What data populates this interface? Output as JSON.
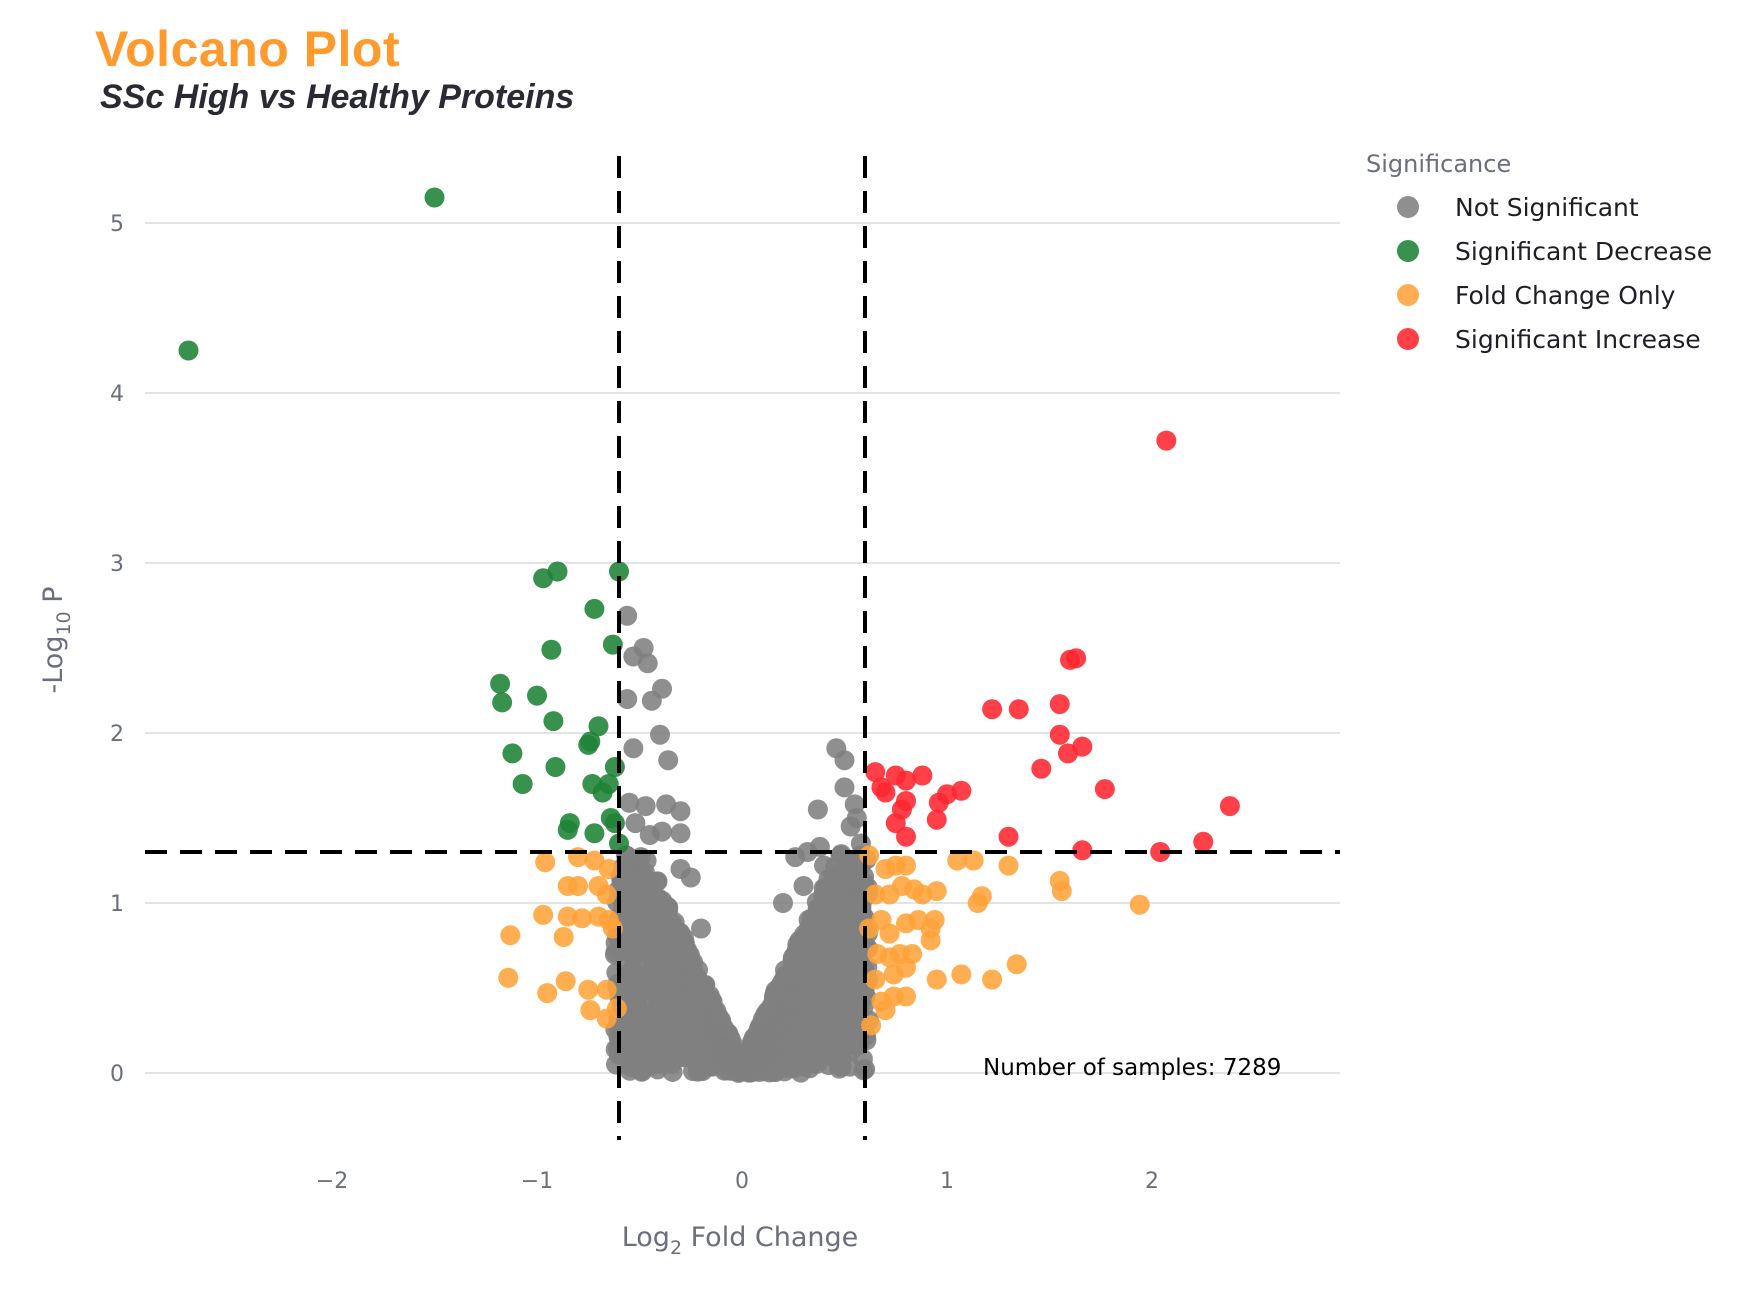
{
  "chart_data": {
    "type": "scatter",
    "title": "Volcano Plot",
    "subtitle": "SSc High vs Healthy Proteins",
    "xlabel_main": "Log",
    "xlabel_sub": "2",
    "xlabel_rest": " Fold Change",
    "ylabel_pre": "-Log",
    "ylabel_sub": "10",
    "ylabel_rest": " P",
    "xlim": [
      -2.9,
      2.9
    ],
    "ylim": [
      -0.45,
      5.4
    ],
    "x_ticks": [
      -2,
      -1,
      0,
      1,
      2
    ],
    "x_tick_labels": [
      "−2",
      "−1",
      "0",
      "1",
      "2"
    ],
    "y_ticks": [
      0,
      1,
      2,
      3,
      4,
      5
    ],
    "y_tick_labels": [
      "0",
      "1",
      "2",
      "3",
      "4",
      "5"
    ],
    "grid": "horizontal",
    "thresholds": {
      "fold_change": [
        -0.6,
        0.6
      ],
      "neg_log10_p": 1.3
    },
    "legend": {
      "title": "Significance",
      "placement": "top-right",
      "entries": [
        "Not Significant",
        "Significant Decrease",
        "Fold Change Only",
        "Significant Increase"
      ]
    },
    "annotation": "Number of samples: 7289",
    "colors": {
      "Not Significant": "#808080",
      "Significant Decrease": "#1e8236",
      "Fold Change Only": "#ffa33a",
      "Significant Increase": "#ff2530"
    },
    "series": [
      {
        "name": "Significant Decrease",
        "points": [
          [
            -2.7,
            4.25
          ],
          [
            -1.5,
            5.15
          ],
          [
            -0.6,
            2.95
          ],
          [
            -0.9,
            2.95
          ],
          [
            -0.97,
            2.91
          ],
          [
            -0.72,
            2.73
          ],
          [
            -0.93,
            2.49
          ],
          [
            -0.63,
            2.52
          ],
          [
            -1.18,
            2.29
          ],
          [
            -1.17,
            2.18
          ],
          [
            -1.0,
            2.22
          ],
          [
            -0.92,
            2.07
          ],
          [
            -0.7,
            2.04
          ],
          [
            -0.75,
            1.93
          ],
          [
            -0.74,
            1.95
          ],
          [
            -1.12,
            1.88
          ],
          [
            -0.91,
            1.8
          ],
          [
            -0.62,
            1.8
          ],
          [
            -1.07,
            1.7
          ],
          [
            -0.73,
            1.7
          ],
          [
            -0.65,
            1.7
          ],
          [
            -0.68,
            1.65
          ],
          [
            -0.84,
            1.47
          ],
          [
            -0.85,
            1.43
          ],
          [
            -0.64,
            1.5
          ],
          [
            -0.62,
            1.47
          ],
          [
            -0.72,
            1.41
          ],
          [
            -0.6,
            1.35
          ]
        ]
      },
      {
        "name": "Significant Increase",
        "points": [
          [
            2.07,
            3.72
          ],
          [
            1.63,
            2.44
          ],
          [
            1.6,
            2.43
          ],
          [
            1.22,
            2.14
          ],
          [
            1.35,
            2.14
          ],
          [
            1.55,
            2.17
          ],
          [
            1.55,
            1.99
          ],
          [
            1.59,
            1.88
          ],
          [
            1.66,
            1.92
          ],
          [
            1.46,
            1.79
          ],
          [
            0.65,
            1.77
          ],
          [
            0.68,
            1.68
          ],
          [
            0.7,
            1.65
          ],
          [
            0.75,
            1.75
          ],
          [
            0.8,
            1.72
          ],
          [
            0.88,
            1.75
          ],
          [
            0.8,
            1.6
          ],
          [
            0.78,
            1.55
          ],
          [
            0.75,
            1.47
          ],
          [
            0.8,
            1.39
          ],
          [
            0.96,
            1.59
          ],
          [
            1.0,
            1.64
          ],
          [
            1.07,
            1.66
          ],
          [
            0.95,
            1.49
          ],
          [
            1.3,
            1.39
          ],
          [
            1.77,
            1.67
          ],
          [
            2.38,
            1.57
          ],
          [
            2.25,
            1.36
          ],
          [
            2.04,
            1.3
          ],
          [
            1.66,
            1.31
          ]
        ]
      },
      {
        "name": "Fold Change Only",
        "points": [
          [
            -0.96,
            1.24
          ],
          [
            -0.8,
            1.27
          ],
          [
            -0.72,
            1.25
          ],
          [
            -0.65,
            1.2
          ],
          [
            -0.85,
            1.1
          ],
          [
            -0.8,
            1.1
          ],
          [
            -0.7,
            1.1
          ],
          [
            -0.66,
            1.05
          ],
          [
            -1.13,
            0.81
          ],
          [
            -0.97,
            0.93
          ],
          [
            -0.85,
            0.92
          ],
          [
            -0.78,
            0.91
          ],
          [
            -0.7,
            0.92
          ],
          [
            -0.65,
            0.9
          ],
          [
            -0.63,
            0.85
          ],
          [
            -0.87,
            0.8
          ],
          [
            -1.14,
            0.56
          ],
          [
            -0.86,
            0.54
          ],
          [
            -0.95,
            0.47
          ],
          [
            -0.75,
            0.49
          ],
          [
            -0.66,
            0.49
          ],
          [
            -0.74,
            0.37
          ],
          [
            -0.66,
            0.32
          ],
          [
            -0.61,
            0.38
          ],
          [
            0.62,
            1.28
          ],
          [
            0.7,
            1.2
          ],
          [
            0.75,
            1.22
          ],
          [
            0.8,
            1.22
          ],
          [
            1.05,
            1.25
          ],
          [
            1.13,
            1.25
          ],
          [
            1.3,
            1.22
          ],
          [
            0.65,
            1.05
          ],
          [
            0.72,
            1.05
          ],
          [
            0.78,
            1.1
          ],
          [
            0.84,
            1.08
          ],
          [
            0.88,
            1.05
          ],
          [
            0.95,
            1.07
          ],
          [
            1.15,
            1.0
          ],
          [
            1.17,
            1.04
          ],
          [
            1.55,
            1.13
          ],
          [
            1.56,
            1.07
          ],
          [
            1.94,
            0.99
          ],
          [
            0.62,
            0.85
          ],
          [
            0.68,
            0.9
          ],
          [
            0.72,
            0.82
          ],
          [
            0.8,
            0.88
          ],
          [
            0.86,
            0.9
          ],
          [
            0.92,
            0.85
          ],
          [
            0.94,
            0.9
          ],
          [
            0.66,
            0.7
          ],
          [
            0.72,
            0.68
          ],
          [
            0.77,
            0.7
          ],
          [
            0.83,
            0.7
          ],
          [
            0.92,
            0.78
          ],
          [
            0.65,
            0.55
          ],
          [
            0.74,
            0.58
          ],
          [
            0.8,
            0.62
          ],
          [
            0.95,
            0.55
          ],
          [
            1.07,
            0.58
          ],
          [
            1.22,
            0.55
          ],
          [
            1.34,
            0.64
          ],
          [
            0.68,
            0.42
          ],
          [
            0.74,
            0.45
          ],
          [
            0.8,
            0.45
          ],
          [
            0.7,
            0.37
          ],
          [
            0.63,
            0.28
          ]
        ]
      },
      {
        "name": "Not Significant",
        "points": [
          [
            -0.56,
            2.69
          ],
          [
            -0.48,
            2.5
          ],
          [
            -0.53,
            2.45
          ],
          [
            -0.46,
            2.41
          ],
          [
            -0.39,
            2.26
          ],
          [
            -0.56,
            2.2
          ],
          [
            -0.44,
            2.19
          ],
          [
            -0.4,
            1.99
          ],
          [
            -0.53,
            1.91
          ],
          [
            -0.36,
            1.84
          ],
          [
            -0.55,
            1.59
          ],
          [
            -0.47,
            1.57
          ],
          [
            -0.37,
            1.58
          ],
          [
            -0.3,
            1.54
          ],
          [
            -0.52,
            1.47
          ],
          [
            -0.45,
            1.4
          ],
          [
            -0.39,
            1.42
          ],
          [
            -0.3,
            1.41
          ],
          [
            0.46,
            1.91
          ],
          [
            0.5,
            1.84
          ],
          [
            0.5,
            1.68
          ],
          [
            0.55,
            1.58
          ],
          [
            0.37,
            1.55
          ],
          [
            0.56,
            1.5
          ],
          [
            0.53,
            1.45
          ],
          [
            0.38,
            1.33
          ],
          [
            0.58,
            1.35
          ],
          [
            0.26,
            1.27
          ],
          [
            0.32,
            1.3
          ],
          [
            0.4,
            1.22
          ],
          [
            0.48,
            1.28
          ],
          [
            -0.36,
            0.07
          ],
          [
            -0.55,
            0.24
          ],
          [
            0.44,
            0.18
          ],
          [
            0.55,
            0.26
          ],
          [
            0.3,
            1.1
          ],
          [
            0.2,
            1.0
          ],
          [
            -0.25,
            1.15
          ],
          [
            -0.3,
            1.2
          ],
          [
            -0.2,
            0.85
          ]
        ]
      }
    ],
    "not_significant_bulk": "dense V-shaped cluster of points centred at x = 0, within |x| < 0.6 and y < 1.3"
  }
}
